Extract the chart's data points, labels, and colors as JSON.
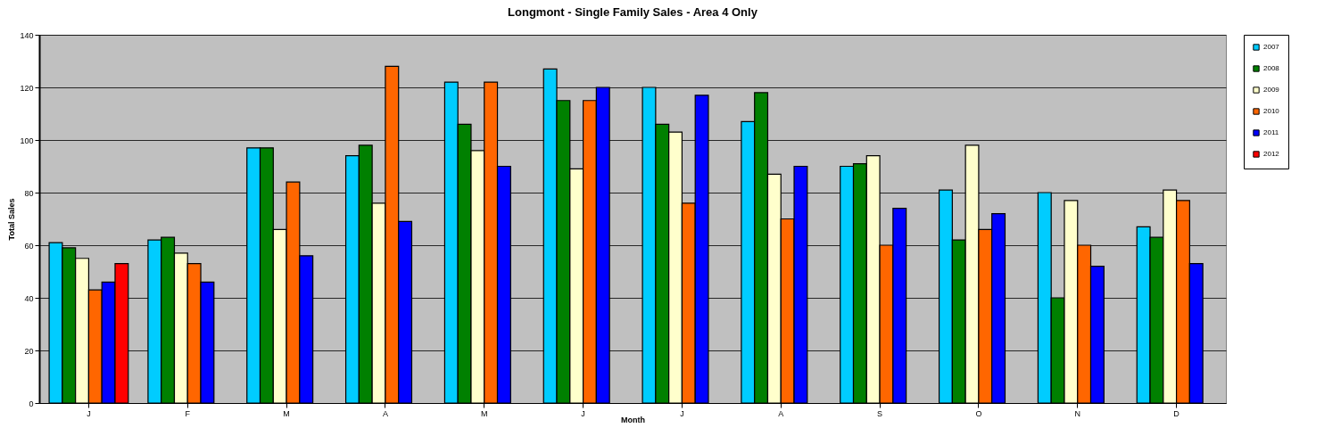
{
  "chart_data": {
    "type": "bar",
    "title": "Longmont - Single Family Sales - Area 4 Only",
    "xlabel": "Month",
    "ylabel": "Total Sales",
    "categories": [
      "J",
      "F",
      "M",
      "A",
      "M",
      "J",
      "J",
      "A",
      "S",
      "O",
      "N",
      "D"
    ],
    "series": [
      {
        "name": "2007",
        "color": "#00ccff",
        "values": [
          61,
          62,
          97,
          94,
          122,
          127,
          120,
          107,
          90,
          81,
          80,
          67
        ]
      },
      {
        "name": "2008",
        "color": "#008000",
        "values": [
          59,
          63,
          97,
          98,
          106,
          115,
          106,
          118,
          91,
          62,
          40,
          63
        ]
      },
      {
        "name": "2009",
        "color": "#ffffcc",
        "values": [
          55,
          57,
          66,
          76,
          96,
          89,
          103,
          87,
          94,
          98,
          77,
          81
        ]
      },
      {
        "name": "2010",
        "color": "#ff6600",
        "values": [
          43,
          53,
          84,
          128,
          122,
          115,
          76,
          70,
          60,
          66,
          60,
          77
        ]
      },
      {
        "name": "2011",
        "color": "#0000ff",
        "values": [
          46,
          46,
          56,
          69,
          90,
          120,
          117,
          90,
          74,
          72,
          52,
          53
        ]
      },
      {
        "name": "2012",
        "color": "#ff0000",
        "values": [
          53,
          null,
          null,
          null,
          null,
          null,
          null,
          null,
          null,
          null,
          null,
          null
        ]
      }
    ],
    "ylim": [
      0,
      140
    ],
    "yticks": [
      0,
      20,
      40,
      60,
      80,
      100,
      120,
      140
    ],
    "grid": "y",
    "legend": "right"
  }
}
